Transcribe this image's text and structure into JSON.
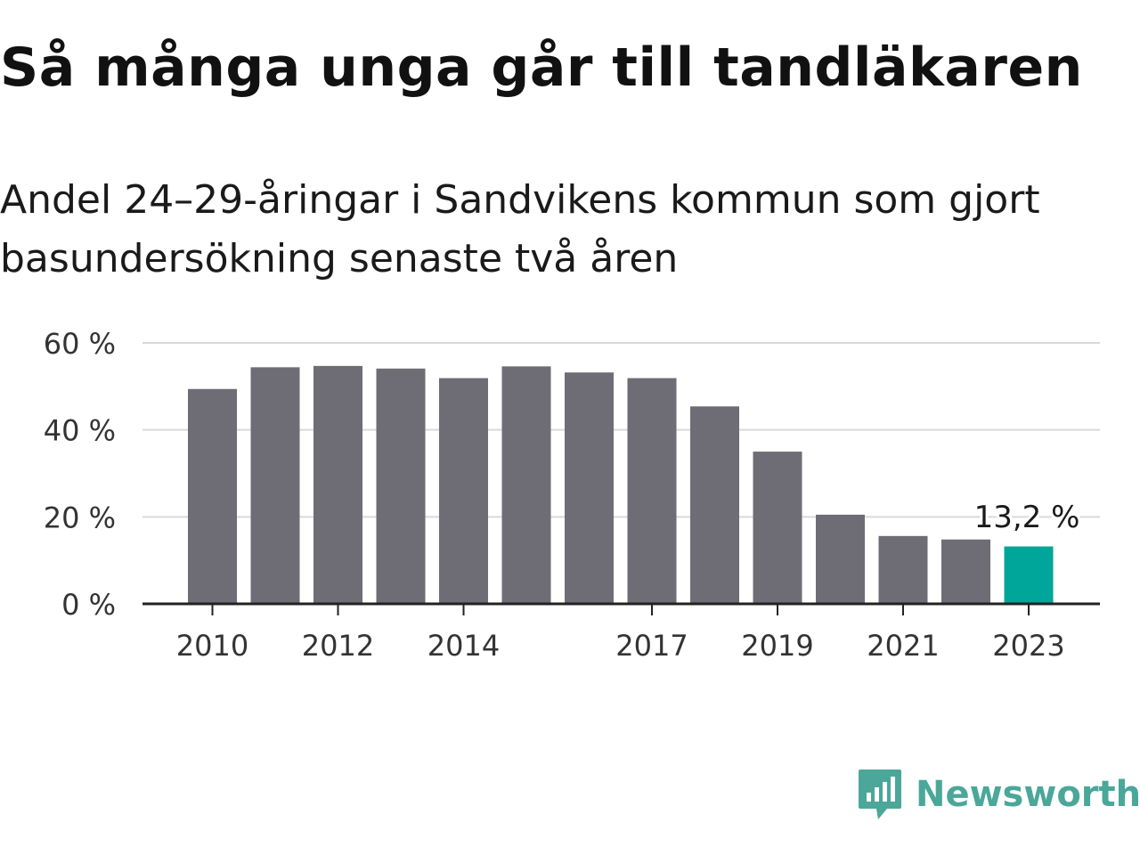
{
  "chart_data": {
    "type": "bar",
    "title": "Så många unga går till tandläkaren",
    "subtitle": "Andel 24–29-åringar i Sandvikens kommun som gjort basundersökning senaste två åren",
    "categories": [
      "2010",
      "2011",
      "2012",
      "2013",
      "2014",
      "2015",
      "2016",
      "2017",
      "2018",
      "2019",
      "2020",
      "2021",
      "2022",
      "2023"
    ],
    "values": [
      49.4,
      54.4,
      54.7,
      54.1,
      51.9,
      54.6,
      53.2,
      51.9,
      45.4,
      35.0,
      20.5,
      15.6,
      14.8,
      13.2
    ],
    "x_tick_labels": [
      "2010",
      "2012",
      "2014",
      "2017",
      "2019",
      "2021",
      "2023"
    ],
    "y_ticks": [
      0,
      20,
      40,
      60
    ],
    "y_tick_labels": [
      "0 %",
      "20 %",
      "40 %",
      "60 %"
    ],
    "ylim": [
      0,
      60
    ],
    "xlabel": "",
    "ylabel": "",
    "grid": true,
    "annotation": {
      "category": "2023",
      "label": "13,2 %"
    },
    "colors": {
      "bar": "#6e6d75",
      "highlight": "#00a699",
      "grid": "#d9d9d9",
      "axis": "#222222",
      "tick_text": "#333333"
    }
  },
  "brand": {
    "name": "Newsworthy",
    "icon": "newsworthy-chat-bars-icon",
    "color": "#4aa79a"
  }
}
